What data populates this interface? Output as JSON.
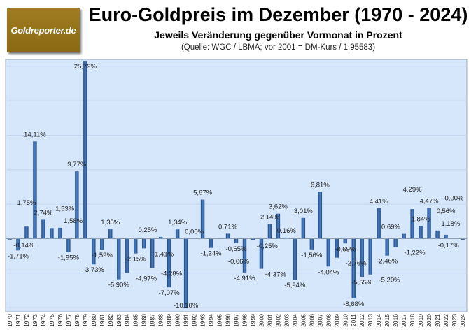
{
  "logo_text": "Goldreporter.de",
  "chart_data": {
    "type": "bar",
    "title": "Euro-Goldpreis im Dezember (1970 - 2024)",
    "subtitle": "Jeweils Veränderung gegenüber Vormonat in Prozent",
    "source": "(Quelle: WGC / LBMA; vor 2001 = DM-Kurs / 1,95583)",
    "xlabel": "",
    "ylabel": "",
    "ylim": [
      -10.6,
      26
    ],
    "grid": true,
    "bar_color": "#2f5f9e",
    "background_color": "#d6e6fb",
    "categories": [
      "1970",
      "1971",
      "1972",
      "1973",
      "1974",
      "1975",
      "1976",
      "1977",
      "1978",
      "1979",
      "1980",
      "1981",
      "1982",
      "1983",
      "1984",
      "1985",
      "1986",
      "1987",
      "1988",
      "1989",
      "1990",
      "1991",
      "1992",
      "1993",
      "1994",
      "1995",
      "1996",
      "1997",
      "1998",
      "1999",
      "2000",
      "2001",
      "2002",
      "2003",
      "2004",
      "2005",
      "2006",
      "2007",
      "2008",
      "2009",
      "2010",
      "2011",
      "2012",
      "2013",
      "2014",
      "2015",
      "2016",
      "2017",
      "2018",
      "2019",
      "2020",
      "2021",
      "2022",
      "2023",
      "2024"
    ],
    "values": [
      -0.14,
      -1.71,
      1.75,
      14.11,
      2.74,
      1.53,
      1.58,
      -1.95,
      9.77,
      25.79,
      -3.73,
      -1.59,
      1.35,
      -5.9,
      -4.97,
      -2.15,
      -1.41,
      -4.28,
      0.25,
      -7.07,
      1.34,
      -10.1,
      0.0,
      5.67,
      -1.34,
      -0.06,
      0.71,
      -0.65,
      -4.91,
      -0.25,
      -4.37,
      2.14,
      3.62,
      0.16,
      -5.94,
      3.01,
      -1.56,
      6.81,
      -4.04,
      -2.76,
      -0.69,
      -8.68,
      -5.55,
      -5.2,
      4.41,
      -2.46,
      -1.22,
      0.69,
      4.29,
      1.84,
      4.47,
      1.18,
      0.56,
      0.0,
      -0.17
    ],
    "data_labels": [
      "-0,14%",
      "-1,71%",
      "1,75%",
      "14,11%",
      "2,74%",
      "1,53%",
      "1,58%",
      "-1,95%",
      "9,77%",
      "25,79%",
      "-3,73%",
      "-1,59%",
      "1,35%",
      "-5,90%",
      "-4,97%",
      "-2,15%",
      "-1,41%",
      "-4,28%",
      "0,25%",
      "-7,07%",
      "1,34%",
      "-10,10%",
      "0,00%",
      "5,67%",
      "-1,34%",
      "-0,06%",
      "0,71%",
      "-0,65%",
      "-4,91%",
      "-0,25%",
      "-4,37%",
      "2,14%",
      "3,62%",
      "0,16%",
      "-5,94%",
      "3,01%",
      "-1,56%",
      "6,81%",
      "-4,04%",
      "-2,76%",
      "-0,69%",
      "-8,68%",
      "-5,55%",
      "-5,20%",
      "4,41%",
      "-2,46%",
      "-1,22%",
      "0,69%",
      "4,29%",
      "1,84%",
      "4,47%",
      "1,18%",
      "0,56%",
      "0,00%",
      "-0,17%"
    ]
  }
}
